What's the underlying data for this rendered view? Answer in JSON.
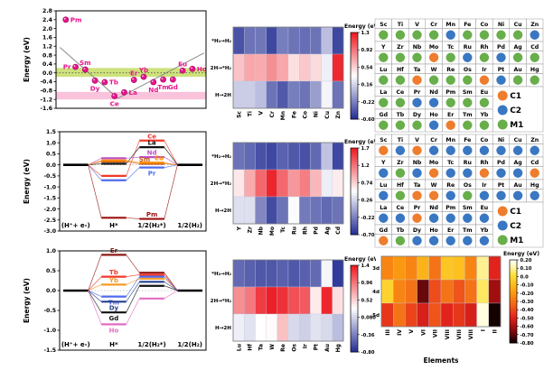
{
  "chart_data": [
    {
      "id": "volcano-scatter",
      "type": "scatter",
      "ylabel": "Energy (eV)",
      "ylim": [
        -1.6,
        2.8
      ],
      "yticks": [
        2.8,
        2.4,
        2.0,
        1.6,
        1.2,
        0.8,
        0.4,
        0.0,
        -0.4,
        -0.8,
        -1.2,
        -1.6
      ],
      "xlim": [
        0,
        15.4
      ],
      "marker_color": "#e8148c",
      "marker_edge": "#9c0b60",
      "line_color": "#8a8a8a",
      "zero_line_y": 0.0,
      "bands": [
        {
          "y0": -0.18,
          "y1": 0.22,
          "color": "#b3d335",
          "opacity": 0.65
        },
        {
          "y0": -1.2,
          "y1": -0.86,
          "color": "#f8bcd8",
          "opacity": 0.9
        }
      ],
      "volcano_line": {
        "x": [
          0.4,
          6.35,
          15.2
        ],
        "y": [
          1.15,
          -1.15,
          0.9
        ]
      },
      "points": [
        {
          "label": "Pm",
          "x": 1,
          "y": 2.4,
          "label_pos": "right"
        },
        {
          "label": "Pr",
          "x": 2,
          "y": 0.27,
          "label_pos": "left"
        },
        {
          "label": "Sm",
          "x": 3,
          "y": 0.15,
          "label_pos": "above"
        },
        {
          "label": "Dy",
          "x": 4,
          "y": -0.35,
          "label_pos": "below"
        },
        {
          "label": "Tb",
          "x": 5,
          "y": -0.42,
          "label_pos": "right"
        },
        {
          "label": "Ce",
          "x": 6,
          "y": -1.05,
          "label_pos": "below"
        },
        {
          "label": "La",
          "x": 7,
          "y": -0.88,
          "label_pos": "right"
        },
        {
          "label": "Er",
          "x": 8,
          "y": -0.32,
          "label_pos": "above"
        },
        {
          "label": "Yb",
          "x": 9,
          "y": -0.18,
          "label_pos": "above"
        },
        {
          "label": "Nd",
          "x": 10,
          "y": -0.42,
          "label_pos": "below"
        },
        {
          "label": "Tm",
          "x": 11,
          "y": -0.3,
          "label_pos": "below"
        },
        {
          "label": "Gd",
          "x": 12,
          "y": -0.3,
          "label_pos": "below"
        },
        {
          "label": "Eu",
          "x": 13,
          "y": 0.1,
          "label_pos": "above"
        },
        {
          "label": "Ho",
          "x": 14,
          "y": 0.18,
          "label_pos": "right"
        }
      ]
    },
    {
      "id": "energy-diagram-early-lanthanides",
      "type": "line",
      "ylabel": "Energy (eV)",
      "ylim": [
        -3.0,
        1.5
      ],
      "yticks": [
        1.5,
        1.0,
        0.5,
        0.0,
        -0.5,
        -1.0,
        -1.5,
        -2.0,
        -2.5,
        -3.0
      ],
      "stages": [
        "(H⁺+ e-)",
        "H*",
        "1/2(H₂*)",
        "1/2(H₂)"
      ],
      "label_stage": 3,
      "series": [
        {
          "label": "Ce",
          "color": "#f2392b",
          "h_star": -0.5,
          "h2_star": 1.1,
          "label_side": "above",
          "label_dx": 0
        },
        {
          "label": "La",
          "color": "#111111",
          "h_star": 0.05,
          "h2_star": 0.8,
          "label_side": "above",
          "label_dx": 0
        },
        {
          "label": "Nd",
          "color": "#c04ec7",
          "h_star": 0.3,
          "h2_star": 0.35,
          "label_side": "above",
          "label_dx": 0
        },
        {
          "label": "Sm",
          "color": "#c55a11",
          "h_star": 0.15,
          "h2_star": 0.05,
          "label_side": "above",
          "label_dx": -8
        },
        {
          "label": "Eu",
          "color": "#ff8c00",
          "h_star": 0.2,
          "h2_star": 0.1,
          "label_side": "above",
          "label_dx": 8
        },
        {
          "label": "Pr",
          "color": "#4f6bed",
          "h_star": -0.7,
          "h2_star": -0.12,
          "label_side": "below",
          "label_dx": 0
        },
        {
          "label": "Pm",
          "color": "#9b1111",
          "h_star": -2.4,
          "h2_star": -2.45,
          "label_side": "above",
          "label_dx": 0
        }
      ]
    },
    {
      "id": "energy-diagram-late-lanthanides",
      "type": "line",
      "ylabel": "Energy (eV)",
      "ylim": [
        -1.5,
        1.0
      ],
      "yticks": [
        1.0,
        0.5,
        0.0,
        -0.5,
        -1.0,
        -1.5
      ],
      "stages": [
        "(H⁺+ e-)",
        "H*",
        "1/2(H₂*)",
        "1/2(H₂)"
      ],
      "label_stage": 2,
      "series": [
        {
          "label": "Er",
          "color": "#8f1a1a",
          "h_star": 0.9,
          "h2_star": 0.45,
          "label_side": "above",
          "label_dx": 0
        },
        {
          "label": "Tb",
          "color": "#f2392b",
          "h_star": 0.35,
          "h2_star": 0.4,
          "label_side": "above",
          "label_dx": 0
        },
        {
          "label": "Yb",
          "color": "#f59a23",
          "h_star": 0.15,
          "h2_star": 0.3,
          "label_side": "above",
          "label_dx": 0
        },
        {
          "label": "Tm",
          "color": "#4f6bed",
          "h_star": -0.15,
          "h2_star": 0.35,
          "label_side": "below",
          "label_dx": 0
        },
        {
          "label": "Dy",
          "color": "#27408b",
          "h_star": -0.28,
          "h2_star": 0.22,
          "label_side": "below",
          "label_dx": 0
        },
        {
          "label": "Gd",
          "color": "#111111",
          "h_star": -0.55,
          "h2_star": 0.12,
          "label_side": "below",
          "label_dx": 0
        },
        {
          "label": "Ho",
          "color": "#e26bc4",
          "h_star": -0.85,
          "h2_star": -0.2,
          "label_side": "below",
          "label_dx": 0
        }
      ]
    },
    {
      "id": "heatmap-3d",
      "type": "heatmap",
      "colormap": "diverging",
      "colorbar_title": "Energy (eV)",
      "rows": [
        "*H₂→H₂",
        "2H→*H₂",
        "H→2H"
      ],
      "columns": [
        "Sc",
        "Ti",
        "V",
        "Cr",
        "Mn",
        "Fe",
        "Co",
        "Ni",
        "Cu",
        "Zn"
      ],
      "vmin": -0.6,
      "vmax": 1.3,
      "colorbar_ticks": [
        "1.3",
        "0.92",
        "0.54",
        "0.16",
        "-0.22",
        "-0.60"
      ],
      "values": [
        [
          -0.45,
          -0.3,
          -0.28,
          -0.5,
          -0.25,
          -0.3,
          -0.32,
          -0.3,
          0.05,
          -0.5
        ],
        [
          0.6,
          0.72,
          0.7,
          0.82,
          0.72,
          0.48,
          0.58,
          0.5,
          0.28,
          1.25
        ],
        [
          0.12,
          0.12,
          0.05,
          -0.3,
          -0.42,
          -0.25,
          -0.3,
          -0.1,
          0.3,
          -0.3
        ]
      ]
    },
    {
      "id": "heatmap-4d",
      "type": "heatmap",
      "colormap": "diverging",
      "colorbar_title": "Energy (eV)",
      "rows": [
        "*H₂→H₂",
        "2H→*H₂",
        "H→2H"
      ],
      "columns": [
        "Y",
        "Zr",
        "Nb",
        "Mo",
        "Tc",
        "Ru",
        "Rh",
        "Pd",
        "Ag",
        "Cd"
      ],
      "vmin": -0.7,
      "vmax": 1.7,
      "colorbar_ticks": [
        "1.7",
        "1.2",
        "0.74",
        "0.26",
        "-0.22",
        "-0.70"
      ],
      "values": [
        [
          -0.32,
          -0.38,
          -0.52,
          -0.58,
          -0.42,
          -0.48,
          -0.52,
          -0.38,
          0.15,
          -0.58
        ],
        [
          0.62,
          0.95,
          1.3,
          1.65,
          1.3,
          1.05,
          1.18,
          0.88,
          0.4,
          0.6
        ],
        [
          0.32,
          0.32,
          -0.2,
          -0.55,
          -0.32,
          0.48,
          -0.28,
          -0.32,
          -0.38,
          -0.32
        ]
      ]
    },
    {
      "id": "heatmap-5d",
      "type": "heatmap",
      "colormap": "diverging",
      "colorbar_title": "Energy (eV)",
      "rows": [
        "*H₂→H₂",
        "2H→*H₂",
        "H→2H"
      ],
      "columns": [
        "Lu",
        "Hf",
        "Ta",
        "W",
        "Re",
        "Os",
        "Ir",
        "Pt",
        "Au",
        "Hg"
      ],
      "vmin": -0.8,
      "vmax": 1.4,
      "colorbar_ticks": [
        "1.4",
        "0.96",
        "0.52",
        "0.080",
        "-0.36",
        "-0.80"
      ],
      "values": [
        [
          -0.5,
          -0.55,
          -0.6,
          -0.6,
          -0.55,
          -0.6,
          -0.55,
          -0.5,
          0.25,
          -0.75
        ],
        [
          0.85,
          0.95,
          1.25,
          1.38,
          1.3,
          1.15,
          1.1,
          0.4,
          1.35,
          0.45
        ],
        [
          0.22,
          0.15,
          0.3,
          0.32,
          0.6,
          0.1,
          0.05,
          0.15,
          0.1,
          -0.05
        ]
      ]
    },
    {
      "id": "ptable-map-1",
      "type": "table",
      "legend": [
        {
          "label": "C1",
          "color": "#ee7d2e"
        },
        {
          "label": "C2",
          "color": "#3a77c2"
        },
        {
          "label": "M1",
          "color": "#68ae4b"
        }
      ],
      "rows": [
        [
          "Sc",
          "Ti",
          "V",
          "Cr",
          "Mn",
          "Fe",
          "Co",
          "Ni",
          "Cu",
          "Zn"
        ],
        [
          "Y",
          "Zr",
          "Nb",
          "Mo",
          "Tc",
          "Ru",
          "Rh",
          "Pd",
          "Ag",
          "Cd"
        ],
        [
          "Lu",
          "Hf",
          "Ta",
          "W",
          "Re",
          "Os",
          "Ir",
          "Pt",
          "Au",
          "Hg"
        ],
        [
          "La",
          "Ce",
          "Pr",
          "Nd",
          "Pm",
          "Sm",
          "Eu"
        ],
        [
          "Gd",
          "Tb",
          "Dy",
          "Ho",
          "Er",
          "Tm",
          "Yb"
        ]
      ],
      "classes": [
        [
          "M1",
          "M1",
          "M1",
          "M1",
          "C2",
          "M1",
          "M1",
          "M1",
          "M1",
          "C2"
        ],
        [
          "M1",
          "M1",
          "M1",
          "C1",
          "M1",
          "C2",
          "M1",
          "C2",
          "M1",
          "M1"
        ],
        [
          "M1",
          "M1",
          "C1",
          "M1",
          "M1",
          "M1",
          "C1",
          "C2",
          "M1",
          "M1"
        ],
        [
          "M1",
          "M1",
          "C2",
          "C2",
          "M1",
          "M1",
          "M1"
        ],
        [
          "M1",
          "M1",
          "M1",
          "C2",
          "C1",
          "M1",
          "M1"
        ]
      ]
    },
    {
      "id": "ptable-map-2",
      "type": "table",
      "legend": [
        {
          "label": "C1",
          "color": "#ee7d2e"
        },
        {
          "label": "C2",
          "color": "#3a77c2"
        },
        {
          "label": "M1",
          "color": "#68ae4b"
        }
      ],
      "rows": [
        [
          "Sc",
          "Ti",
          "V",
          "Cr",
          "Mn",
          "Fe",
          "Co",
          "Ni",
          "Cu",
          "Zn"
        ],
        [
          "Y",
          "Zr",
          "Nb",
          "Mo",
          "Tc",
          "Ru",
          "Rh",
          "Pd",
          "Ag",
          "Cd"
        ],
        [
          "Lu",
          "Hf",
          "Ta",
          "W",
          "Re",
          "Os",
          "Ir",
          "Pt",
          "Au",
          "Hg"
        ],
        [
          "La",
          "Ce",
          "Pr",
          "Nd",
          "Pm",
          "Sm",
          "Eu"
        ],
        [
          "Gd",
          "Tb",
          "Dy",
          "Ho",
          "Er",
          "Tm",
          "Yb"
        ]
      ],
      "classes": [
        [
          "C1",
          "C2",
          "C1",
          "C2",
          "C2",
          "C2",
          "C2",
          "C2",
          "C2",
          "C2"
        ],
        [
          "C2",
          "M1",
          "C2",
          "C1",
          "C2",
          "C2",
          "C1",
          "C2",
          "C2",
          "C1"
        ],
        [
          "C2",
          "M1",
          "C1",
          "C1",
          "C2",
          "M1",
          "C2",
          "C2",
          "C2",
          "C2"
        ],
        [
          "C2",
          "C2",
          "C1",
          "C2",
          "C2",
          "C2",
          "C2"
        ],
        [
          "C1",
          "M1",
          "C2",
          "C2",
          "C2",
          "C2",
          "C2"
        ]
      ]
    },
    {
      "id": "heatmap-groups",
      "type": "heatmap",
      "colormap": "hot",
      "colorbar_title": "Energy (eV)",
      "xlabel": "Elements",
      "rows": [
        "3d",
        "4d",
        "5d"
      ],
      "columns": [
        "III",
        "IV",
        "V",
        "VI",
        "VII",
        "VIII",
        "VIII",
        "VIII",
        "I",
        "II"
      ],
      "vmin": -0.8,
      "vmax": 0.2,
      "colorbar_ticks": [
        "0.20",
        "0.10",
        "0.0",
        "-0.10",
        "-0.20",
        "-0.30",
        "-0.40",
        "-0.50",
        "-0.60",
        "-0.70",
        "-0.80"
      ],
      "values": [
        [
          -0.25,
          -0.2,
          -0.25,
          -0.12,
          -0.3,
          -0.06,
          -0.08,
          -0.25,
          0.1,
          -0.5
        ],
        [
          -0.02,
          -0.25,
          -0.3,
          -0.7,
          -0.4,
          -0.3,
          -0.38,
          -0.3,
          0.06,
          -0.62
        ],
        [
          -0.45,
          -0.3,
          -0.42,
          -0.52,
          -0.38,
          -0.5,
          -0.45,
          -0.52,
          0.18,
          -0.8
        ]
      ]
    }
  ]
}
